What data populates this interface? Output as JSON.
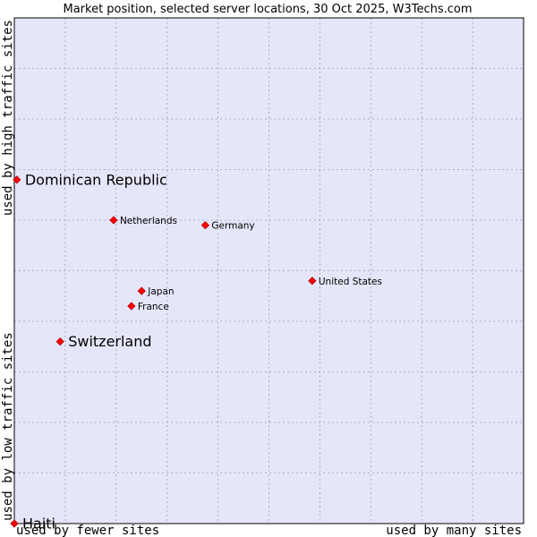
{
  "chart_data": {
    "type": "scatter",
    "title": "Market position, selected server locations, 30 Oct 2025, W3Techs.com",
    "xlabel_left": "used by fewer sites",
    "xlabel_right": "used by many sites",
    "ylabel_bottom": "used by low traffic sites",
    "ylabel_top": "used by high traffic sites",
    "xlim": [
      0,
      10
    ],
    "ylim": [
      0,
      10
    ],
    "grid": true,
    "colors": {
      "plot_bg": "#e6e6fa",
      "grid": "#a0a0b4",
      "border": "#000000",
      "marker": "#ff0000",
      "marker_edge": "#990000"
    },
    "points": [
      {
        "name": "Dominican Republic",
        "x": 0.05,
        "y": 6.8,
        "size": "large"
      },
      {
        "name": "Netherlands",
        "x": 1.95,
        "y": 6.0,
        "size": "small"
      },
      {
        "name": "Germany",
        "x": 3.75,
        "y": 5.9,
        "size": "small"
      },
      {
        "name": "United States",
        "x": 5.85,
        "y": 4.8,
        "size": "small"
      },
      {
        "name": "Japan",
        "x": 2.5,
        "y": 4.6,
        "size": "small"
      },
      {
        "name": "France",
        "x": 2.3,
        "y": 4.3,
        "size": "small"
      },
      {
        "name": "Switzerland",
        "x": 0.9,
        "y": 3.6,
        "size": "large"
      },
      {
        "name": "Haiti",
        "x": 0.0,
        "y": 0.0,
        "size": "large"
      }
    ]
  }
}
